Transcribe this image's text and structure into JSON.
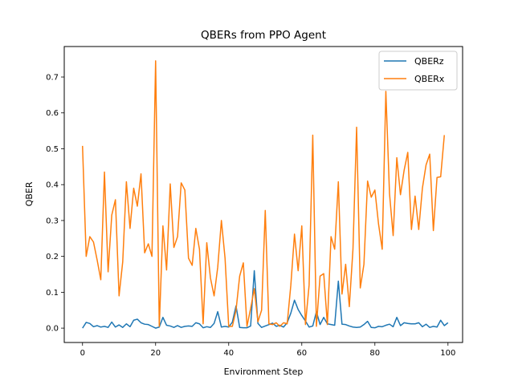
{
  "chart_data": {
    "type": "line",
    "title": "QBERs from PPO Agent",
    "xlabel": "Environment Step",
    "ylabel": "QBER",
    "xlim": [
      -5,
      104
    ],
    "ylim": [
      -0.04,
      0.785
    ],
    "xticks": [
      0,
      20,
      40,
      60,
      80,
      100
    ],
    "yticks": [
      0.0,
      0.1,
      0.2,
      0.3,
      0.4,
      0.5,
      0.6,
      0.7
    ],
    "grid": false,
    "legend_position": "top-right",
    "series": [
      {
        "name": "QBERz",
        "color": "#1f77b4",
        "values": [
          0.0,
          0.016,
          0.013,
          0.004,
          0.007,
          0.003,
          0.005,
          0.002,
          0.017,
          0.003,
          0.009,
          0.002,
          0.012,
          0.004,
          0.022,
          0.025,
          0.015,
          0.011,
          0.01,
          0.005,
          0.0,
          0.003,
          0.03,
          0.008,
          0.006,
          0.002,
          0.007,
          0.002,
          0.005,
          0.006,
          0.005,
          0.015,
          0.012,
          0.001,
          0.004,
          0.002,
          0.013,
          0.046,
          0.003,
          0.005,
          0.003,
          0.017,
          0.062,
          0.002,
          0.001,
          0.001,
          0.006,
          0.16,
          0.013,
          0.002,
          0.006,
          0.01,
          0.014,
          0.005,
          0.008,
          0.003,
          0.015,
          0.042,
          0.078,
          0.052,
          0.035,
          0.02,
          0.003,
          0.006,
          0.046,
          0.01,
          0.03,
          0.012,
          0.01,
          0.008,
          0.131,
          0.011,
          0.01,
          0.006,
          0.003,
          0.002,
          0.003,
          0.01,
          0.019,
          0.002,
          0.001,
          0.005,
          0.004,
          0.008,
          0.011,
          0.004,
          0.03,
          0.007,
          0.015,
          0.013,
          0.012,
          0.012,
          0.015,
          0.004,
          0.011,
          0.002,
          0.005,
          0.003,
          0.022,
          0.007,
          0.015
        ]
      },
      {
        "name": "QBERx",
        "color": "#ff7f0e",
        "values": [
          0.508,
          0.2,
          0.255,
          0.24,
          0.19,
          0.135,
          0.435,
          0.157,
          0.315,
          0.358,
          0.09,
          0.185,
          0.408,
          0.278,
          0.39,
          0.34,
          0.43,
          0.21,
          0.235,
          0.2,
          0.745,
          0.005,
          0.285,
          0.162,
          0.402,
          0.225,
          0.255,
          0.405,
          0.385,
          0.195,
          0.175,
          0.278,
          0.22,
          0.012,
          0.238,
          0.14,
          0.09,
          0.17,
          0.3,
          0.195,
          0.005,
          0.005,
          0.05,
          0.145,
          0.182,
          0.005,
          0.055,
          0.11,
          0.018,
          0.05,
          0.328,
          0.012,
          0.01,
          0.015,
          0.005,
          0.015,
          0.012,
          0.12,
          0.262,
          0.16,
          0.285,
          0.01,
          0.12,
          0.538,
          0.005,
          0.145,
          0.152,
          0.01,
          0.255,
          0.22,
          0.408,
          0.095,
          0.178,
          0.06,
          0.22,
          0.56,
          0.112,
          0.178,
          0.41,
          0.365,
          0.385,
          0.29,
          0.22,
          0.66,
          0.375,
          0.258,
          0.475,
          0.372,
          0.44,
          0.49,
          0.275,
          0.368,
          0.275,
          0.39,
          0.455,
          0.485,
          0.272,
          0.42,
          0.422,
          0.538
        ]
      }
    ]
  }
}
